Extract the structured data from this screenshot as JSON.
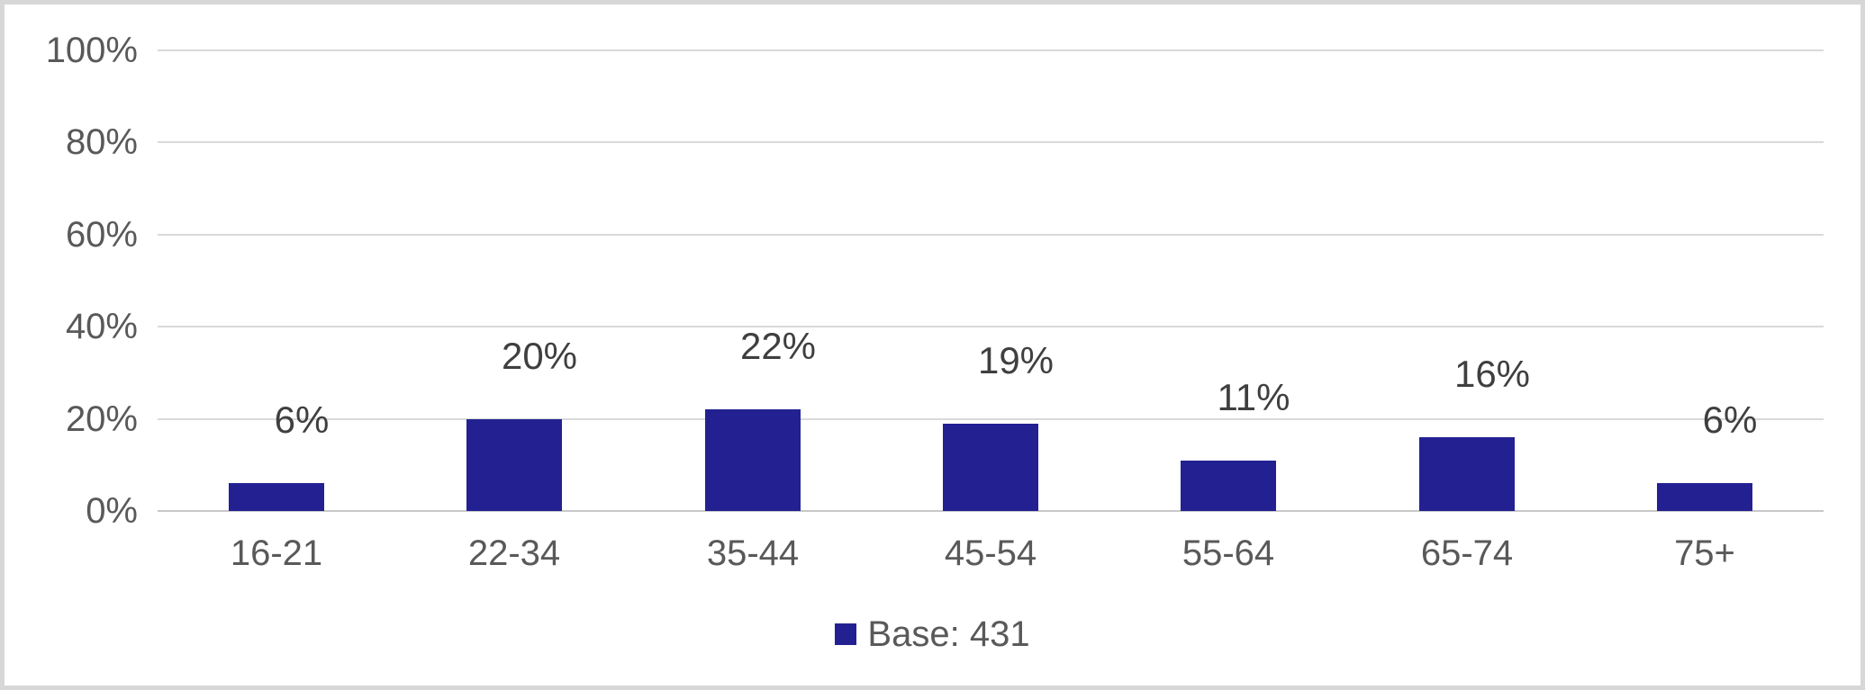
{
  "chart_data": {
    "type": "bar",
    "title": "",
    "categories": [
      "16-21",
      "22-34",
      "35-44",
      "45-54",
      "55-64",
      "65-74",
      "75+"
    ],
    "series": [
      {
        "name": "Base: 431",
        "values": [
          6,
          20,
          22,
          19,
          11,
          16,
          6
        ]
      }
    ],
    "data_labels": [
      "6%",
      "20%",
      "22%",
      "19%",
      "11%",
      "16%",
      "6%"
    ],
    "xlabel": "",
    "ylabel": "",
    "ylim": [
      0,
      100
    ],
    "y_ticks": [
      0,
      20,
      40,
      60,
      80,
      100
    ],
    "y_tick_labels": [
      "0%",
      "20%",
      "40%",
      "60%",
      "80%",
      "100%"
    ],
    "grid": "horizontal-only",
    "legend": {
      "label": "Base: 431",
      "position": "bottom-center"
    },
    "colors": {
      "bar": "#232192",
      "axis_text": "#595959",
      "data_label_text": "#3f3f3f",
      "gridline": "#d9d9d9",
      "axis_line": "#c8c8c8",
      "frame_border": "#d7d7d7",
      "background": "#ffffff"
    }
  }
}
